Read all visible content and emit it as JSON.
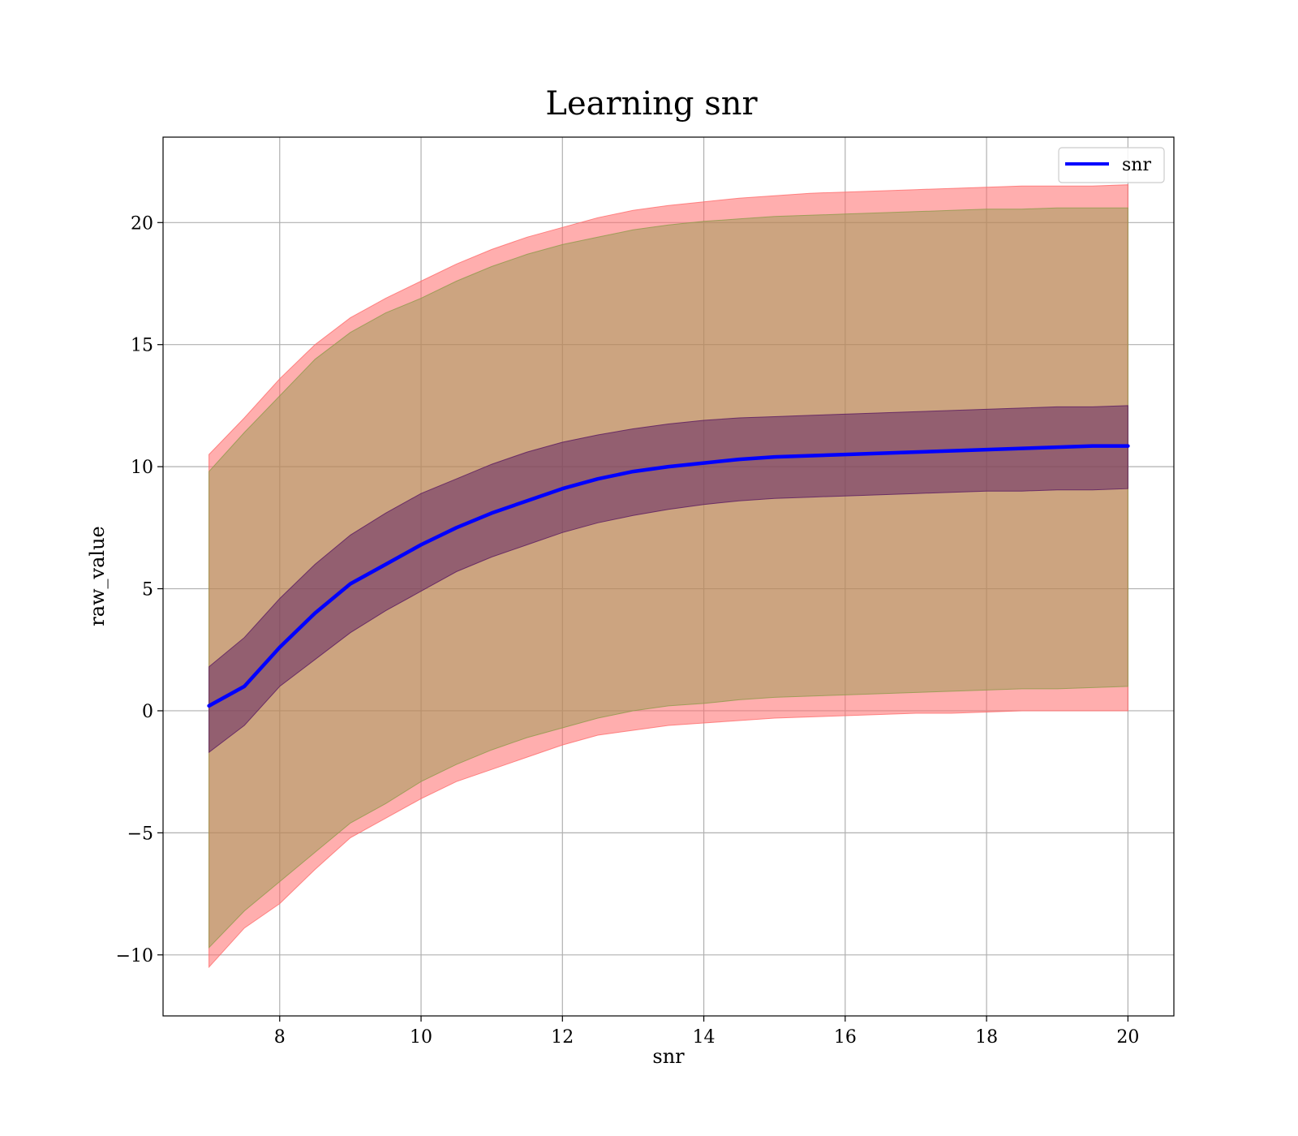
{
  "chart_data": {
    "type": "area",
    "title": "Learning snr",
    "xlabel": "snr",
    "ylabel": "raw_value",
    "xlim": [
      6.35,
      20.65
    ],
    "ylim": [
      -12.5,
      23.5
    ],
    "x_ticks": [
      8,
      10,
      12,
      14,
      16,
      18,
      20
    ],
    "y_ticks": [
      -10,
      -5,
      0,
      5,
      10,
      15,
      20
    ],
    "x_tick_labels": [
      "8",
      "10",
      "12",
      "14",
      "16",
      "18",
      "20"
    ],
    "y_tick_labels": [
      "−10",
      "−5",
      "0",
      "5",
      "10",
      "15",
      "20"
    ],
    "grid": true,
    "legend_position": "top-right",
    "x": [
      7.0,
      7.5,
      8.0,
      8.5,
      9.0,
      9.5,
      10.0,
      10.5,
      11.0,
      11.5,
      12.0,
      12.5,
      13.0,
      13.5,
      14.0,
      14.5,
      15.0,
      15.5,
      16.0,
      16.5,
      17.0,
      17.5,
      18.0,
      18.5,
      19.0,
      19.5,
      20.0
    ],
    "series": [
      {
        "name": "snr",
        "color": "#0000ff",
        "values": [
          0.2,
          1.0,
          2.6,
          4.0,
          5.2,
          6.0,
          6.8,
          7.5,
          8.1,
          8.6,
          9.1,
          9.5,
          9.8,
          10.0,
          10.15,
          10.3,
          10.4,
          10.45,
          10.5,
          10.55,
          10.6,
          10.65,
          10.7,
          10.75,
          10.8,
          10.85,
          10.85
        ]
      }
    ],
    "bands": [
      {
        "color": "#ff6b6b",
        "opacity": 0.55,
        "upper": [
          10.5,
          12.0,
          13.6,
          15.0,
          16.1,
          16.9,
          17.6,
          18.3,
          18.9,
          19.4,
          19.8,
          20.2,
          20.5,
          20.7,
          20.85,
          21.0,
          21.1,
          21.2,
          21.25,
          21.3,
          21.35,
          21.4,
          21.45,
          21.5,
          21.5,
          21.5,
          21.55
        ],
        "lower": [
          -10.5,
          -8.9,
          -7.9,
          -6.5,
          -5.2,
          -4.4,
          -3.6,
          -2.9,
          -2.4,
          -1.9,
          -1.4,
          -1.0,
          -0.8,
          -0.6,
          -0.5,
          -0.4,
          -0.3,
          -0.25,
          -0.2,
          -0.15,
          -0.1,
          -0.1,
          -0.05,
          0.0,
          0.0,
          0.0,
          0.0
        ]
      },
      {
        "color": "#8e9a4a",
        "opacity": 0.45,
        "upper": [
          9.8,
          11.4,
          12.9,
          14.4,
          15.5,
          16.3,
          16.9,
          17.6,
          18.2,
          18.7,
          19.1,
          19.4,
          19.7,
          19.9,
          20.05,
          20.15,
          20.25,
          20.3,
          20.35,
          20.4,
          20.45,
          20.5,
          20.55,
          20.55,
          20.6,
          20.6,
          20.6
        ],
        "lower": [
          -9.7,
          -8.2,
          -7.0,
          -5.8,
          -4.6,
          -3.8,
          -2.9,
          -2.2,
          -1.6,
          -1.1,
          -0.7,
          -0.3,
          0.0,
          0.2,
          0.3,
          0.45,
          0.55,
          0.6,
          0.65,
          0.7,
          0.75,
          0.8,
          0.85,
          0.9,
          0.9,
          0.95,
          1.0
        ]
      },
      {
        "color": "#5a1a60",
        "opacity": 0.5,
        "upper": [
          1.8,
          3.0,
          4.6,
          6.0,
          7.2,
          8.1,
          8.9,
          9.5,
          10.1,
          10.6,
          11.0,
          11.3,
          11.55,
          11.75,
          11.9,
          12.0,
          12.05,
          12.1,
          12.15,
          12.2,
          12.25,
          12.3,
          12.35,
          12.4,
          12.45,
          12.45,
          12.5
        ],
        "lower": [
          -1.7,
          -0.6,
          1.0,
          2.1,
          3.2,
          4.1,
          4.9,
          5.7,
          6.3,
          6.8,
          7.3,
          7.7,
          8.0,
          8.25,
          8.45,
          8.6,
          8.7,
          8.75,
          8.8,
          8.85,
          8.9,
          8.95,
          9.0,
          9.0,
          9.05,
          9.05,
          9.1
        ]
      }
    ]
  }
}
